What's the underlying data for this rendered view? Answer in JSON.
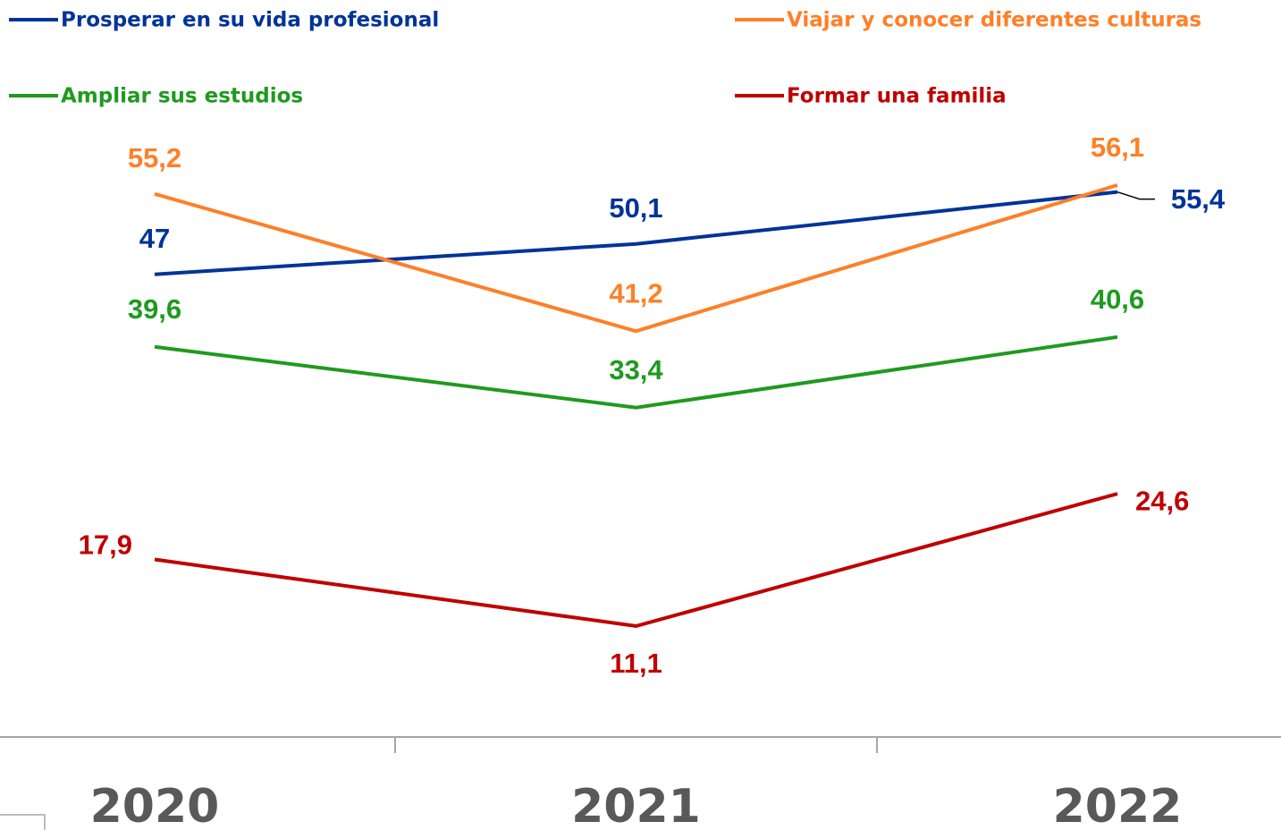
{
  "chart_data": {
    "type": "line",
    "categories": [
      "2020",
      "2021",
      "2022"
    ],
    "series": [
      {
        "name": "Prosperar en su vida profesional",
        "color": "#003399",
        "values": [
          47,
          50.1,
          55.4
        ],
        "value_labels": [
          "47",
          "50,1",
          "55,4"
        ]
      },
      {
        "name": "Viajar y conocer diferentes culturas",
        "color": "#ff7f27",
        "values": [
          55.2,
          41.2,
          56.1
        ],
        "value_labels": [
          "55,2",
          "41,2",
          "56,1"
        ]
      },
      {
        "name": "Ampliar sus estudios",
        "color": "#1f9a1f",
        "values": [
          39.6,
          33.4,
          40.6
        ],
        "value_labels": [
          "39,6",
          "33,4",
          "40,6"
        ]
      },
      {
        "name": "Formar una familia",
        "color": "#c00000",
        "values": [
          17.9,
          11.1,
          24.6
        ],
        "value_labels": [
          "17,9",
          "11,1",
          "24,6"
        ]
      }
    ],
    "legend": "top"
  }
}
